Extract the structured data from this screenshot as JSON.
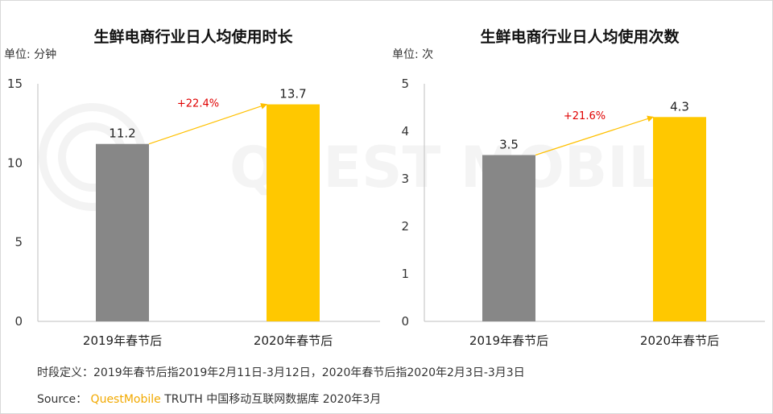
{
  "colors": {
    "series_2019": "#878787",
    "series_2020": "#ffc800",
    "arrow": "#ffc000",
    "growth_text": "#e00000"
  },
  "watermark": "QUEST MOBILE",
  "footer": {
    "definition": "时段定义：2019年春节后指2019年2月11日-3月12日，2020年春节后指2020年2月3日-3月3日",
    "source_label": "Source：",
    "source_brand": "QuestMobile",
    "source_rest": "TRUTH 中国移动互联网数据库 2020年3月"
  },
  "chart_data": [
    {
      "type": "bar",
      "title": "生鲜电商行业日人均使用时长",
      "unit_label": "单位: 分钟",
      "categories": [
        "2019年春节后",
        "2020年春节后"
      ],
      "values": [
        11.2,
        13.7
      ],
      "value_labels": [
        "11.2",
        "13.7"
      ],
      "ylim": [
        0,
        15
      ],
      "yticks": [
        0,
        5,
        10,
        15
      ],
      "growth_label": "+22.4%",
      "grid": false
    },
    {
      "type": "bar",
      "title": "生鲜电商行业日人均使用次数",
      "unit_label": "单位: 次",
      "categories": [
        "2019年春节后",
        "2020年春节后"
      ],
      "values": [
        3.5,
        4.3
      ],
      "value_labels": [
        "3.5",
        "4.3"
      ],
      "ylim": [
        0,
        5
      ],
      "yticks": [
        0,
        1,
        2,
        3,
        4,
        5
      ],
      "growth_label": "+21.6%",
      "grid": false
    }
  ]
}
